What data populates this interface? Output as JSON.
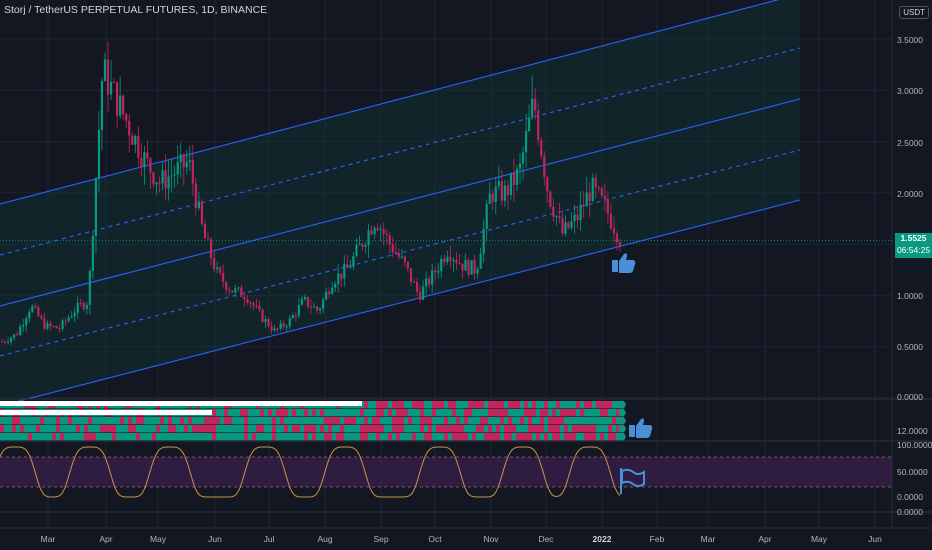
{
  "header": {
    "symbol_title": "Storj / TetherUS PERPETUAL FUTURES, 1D, BINANCE",
    "currency_label": "USDT"
  },
  "price_badge": {
    "price": "1.5525",
    "countdown": "06:54:25"
  },
  "price_axis": {
    "main": [
      "3.5000",
      "3.0000",
      "2.5000",
      "2.0000",
      "1.0000",
      "0.5000",
      "0.0000"
    ],
    "ribbon": [
      "12.0000"
    ],
    "oscillator": [
      "100.0000",
      "50.0000",
      "0.0000"
    ],
    "bottom": [
      "0.0000"
    ]
  },
  "time_axis": {
    "labels": [
      "Mar",
      "Apr",
      "May",
      "Jun",
      "Jul",
      "Aug",
      "Sep",
      "Oct",
      "Nov",
      "Dec",
      "2022",
      "Feb",
      "Mar",
      "Apr",
      "May",
      "Jun"
    ]
  },
  "colors": {
    "background": "#131722",
    "bull": "#089981",
    "bear": "#c2255c",
    "channel": "#2962ff",
    "oscillator_line": "#c8924f",
    "oscillator_fill": "#3a1f4c"
  },
  "icons": {
    "thumbs_up_main": "thumbs-up-icon",
    "thumbs_up_ribbon": "thumbs-up-icon",
    "flag": "flag-icon"
  },
  "chart_data": {
    "type": "line",
    "series": [
      {
        "values": [
          0.55,
          0.62,
          0.9,
          0.7,
          0.68,
          0.85,
          0.95,
          3.2,
          2.9,
          2.6,
          2.3,
          2.1,
          2.2,
          2.3,
          1.6,
          1.2,
          1.05,
          1.0,
          0.8,
          0.65,
          0.75,
          0.95,
          0.85,
          1.15,
          1.25,
          1.5,
          1.75,
          1.5,
          1.3,
          1.0,
          1.2,
          1.45,
          1.3,
          1.25,
          2.0,
          2.0,
          2.2,
          2.9,
          2.0,
          1.6,
          1.75,
          2.05,
          1.85,
          1.55
        ]
      }
    ],
    "ylim": [
      0,
      3.8
    ]
  }
}
